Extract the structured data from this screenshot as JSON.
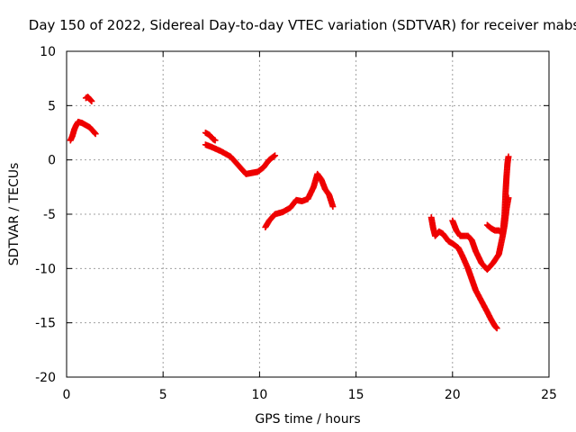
{
  "chart_data": {
    "type": "scatter",
    "title": "Day 150 of 2022, Sidereal Day-to-day VTEC variation (SDTVAR) for receiver mabs",
    "xlabel": "GPS time / hours",
    "ylabel": "SDTVAR / TECUs",
    "xlim": [
      0,
      25
    ],
    "ylim": [
      -20,
      10
    ],
    "xticks": [
      0,
      5,
      10,
      15,
      20,
      25
    ],
    "yticks": [
      -20,
      -15,
      -10,
      -5,
      0,
      5,
      10
    ],
    "grid": true,
    "marker": "plus",
    "color": "#ee0000",
    "series": [
      {
        "segments": [
          [
            [
              0.2,
              1.8
            ],
            [
              0.3,
              2.2
            ],
            [
              0.4,
              2.8
            ],
            [
              0.5,
              3.2
            ],
            [
              0.6,
              3.5
            ],
            [
              0.8,
              3.4
            ],
            [
              1.0,
              3.2
            ],
            [
              1.2,
              3.0
            ],
            [
              1.4,
              2.6
            ],
            [
              1.5,
              2.4
            ]
          ],
          [
            [
              1.0,
              5.7
            ],
            [
              1.1,
              5.8
            ],
            [
              1.2,
              5.6
            ],
            [
              1.3,
              5.4
            ]
          ],
          [
            [
              7.2,
              1.4
            ],
            [
              7.5,
              1.2
            ],
            [
              8.0,
              0.8
            ],
            [
              8.5,
              0.3
            ],
            [
              9.0,
              -0.7
            ],
            [
              9.3,
              -1.3
            ],
            [
              9.6,
              -1.2
            ],
            [
              9.9,
              -1.1
            ],
            [
              10.2,
              -0.7
            ],
            [
              10.5,
              0.0
            ],
            [
              10.8,
              0.4
            ]
          ],
          [
            [
              7.2,
              2.5
            ],
            [
              7.4,
              2.3
            ],
            [
              7.6,
              1.9
            ],
            [
              7.7,
              1.8
            ]
          ],
          [
            [
              10.3,
              -6.2
            ],
            [
              10.5,
              -5.6
            ],
            [
              10.8,
              -5.0
            ],
            [
              11.2,
              -4.8
            ],
            [
              11.6,
              -4.4
            ],
            [
              11.9,
              -3.7
            ],
            [
              12.2,
              -3.8
            ],
            [
              12.5,
              -3.6
            ],
            [
              12.8,
              -2.5
            ],
            [
              13.0,
              -1.3
            ],
            [
              13.2,
              -1.8
            ],
            [
              13.4,
              -2.7
            ],
            [
              13.6,
              -3.2
            ],
            [
              13.8,
              -4.3
            ]
          ],
          [
            [
              18.9,
              -5.3
            ],
            [
              19.0,
              -6.3
            ],
            [
              19.1,
              -7.0
            ],
            [
              19.3,
              -6.6
            ],
            [
              19.5,
              -6.8
            ],
            [
              19.8,
              -7.5
            ],
            [
              20.0,
              -7.7
            ],
            [
              20.3,
              -8.1
            ],
            [
              20.5,
              -8.8
            ],
            [
              20.8,
              -10.0
            ],
            [
              21.0,
              -11.0
            ],
            [
              21.2,
              -12.0
            ],
            [
              21.5,
              -13.0
            ],
            [
              21.8,
              -14.0
            ],
            [
              22.0,
              -14.7
            ],
            [
              22.2,
              -15.3
            ],
            [
              22.3,
              -15.5
            ]
          ],
          [
            [
              20.0,
              -5.6
            ],
            [
              20.2,
              -6.5
            ],
            [
              20.4,
              -7.0
            ],
            [
              20.8,
              -7.0
            ],
            [
              21.0,
              -7.4
            ],
            [
              21.2,
              -8.4
            ],
            [
              21.5,
              -9.5
            ],
            [
              21.8,
              -10.1
            ],
            [
              22.1,
              -9.5
            ],
            [
              22.4,
              -8.7
            ],
            [
              22.6,
              -7.0
            ],
            [
              22.7,
              -6.0
            ],
            [
              22.8,
              -4.5
            ],
            [
              22.9,
              -3.5
            ]
          ],
          [
            [
              21.8,
              -6.0
            ],
            [
              22.0,
              -6.3
            ],
            [
              22.2,
              -6.5
            ],
            [
              22.4,
              -6.5
            ],
            [
              22.6,
              -6.8
            ],
            [
              22.7,
              -5.0
            ],
            [
              22.75,
              -3.0
            ],
            [
              22.8,
              -1.5
            ],
            [
              22.85,
              -0.3
            ],
            [
              22.9,
              0.3
            ]
          ]
        ]
      }
    ]
  }
}
